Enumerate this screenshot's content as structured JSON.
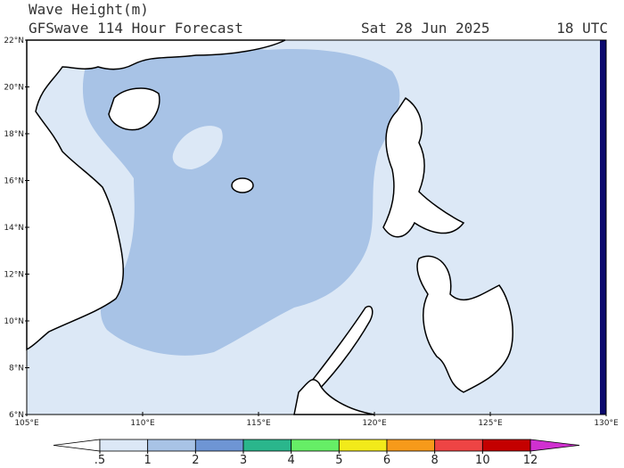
{
  "header": {
    "title": "Wave Height(m)",
    "subtitle": "GFSwave 114 Hour Forecast",
    "date": "Sat 28 Jun 2025",
    "time": "18 UTC"
  },
  "map": {
    "lat_ticks": [
      {
        "value": 22,
        "label": "22°N"
      },
      {
        "value": 20,
        "label": "20°N"
      },
      {
        "value": 18,
        "label": "18°N"
      },
      {
        "value": 16,
        "label": "16°N"
      },
      {
        "value": 14,
        "label": "14°N"
      },
      {
        "value": 12,
        "label": "12°N"
      },
      {
        "value": 10,
        "label": "10°N"
      },
      {
        "value": 8,
        "label": "8°N"
      },
      {
        "value": 6,
        "label": "6°N"
      }
    ],
    "lon_ticks": [
      {
        "value": 105,
        "label": "105°E"
      },
      {
        "value": 110,
        "label": "110°E"
      },
      {
        "value": 115,
        "label": "115°E"
      },
      {
        "value": 120,
        "label": "120°E"
      },
      {
        "value": 125,
        "label": "125°E"
      },
      {
        "value": 130,
        "label": "130°E"
      }
    ],
    "lon_range": [
      105,
      130
    ],
    "lat_range": [
      6,
      22
    ]
  },
  "colorbar": {
    "levels": [
      {
        "value": 0.5,
        "label": ".5"
      },
      1,
      2,
      3,
      4,
      5,
      6,
      8,
      10,
      12
    ],
    "colors": [
      "#ffffff",
      "#dce8f6",
      "#a8c3e6",
      "#6e95d4",
      "#2ab68c",
      "#66ee66",
      "#f2ea1a",
      "#f79a1a",
      "#ee4444",
      "#c40000",
      "#d030d0"
    ]
  }
}
